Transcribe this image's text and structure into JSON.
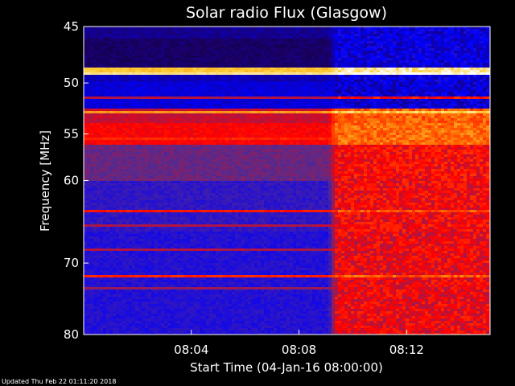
{
  "chart_data": {
    "type": "heatmap",
    "title": "Solar radio Flux (Glasgow)",
    "xlabel": "Start Time (04-Jan-16 08:00:00)",
    "ylabel": "Frequency [MHz]",
    "x_unit": "minutes after 08:00:00",
    "xlim": [
      0,
      15.1
    ],
    "ylim": [
      45,
      80
    ],
    "y_scale": "log",
    "y_direction": "increasing-downward",
    "x_ticks": [
      {
        "value": 4,
        "label": "08:04"
      },
      {
        "value": 8,
        "label": "08:08"
      },
      {
        "value": 12,
        "label": "08:12"
      }
    ],
    "y_ticks": [
      {
        "value": 45,
        "label": "45"
      },
      {
        "value": 50,
        "label": "50"
      },
      {
        "value": 55,
        "label": "55"
      },
      {
        "value": 60,
        "label": "60"
      },
      {
        "value": 70,
        "label": "70"
      },
      {
        "value": 80,
        "label": "80"
      }
    ],
    "transition_time_min": 9.3,
    "colormap": [
      "#000000",
      "#1a0066",
      "#0000ff",
      "#5a2a8a",
      "#ff0000",
      "#ff6600",
      "#ffcc33",
      "#ffffff"
    ],
    "background_levels": [
      {
        "from": 45,
        "to": 46,
        "before": 0.18,
        "after": 0.26
      },
      {
        "from": 46,
        "to": 48.5,
        "before": 0.14,
        "after": 0.26
      },
      {
        "from": 48.5,
        "to": 50,
        "before": 0.22,
        "after": 0.26
      },
      {
        "from": 50,
        "to": 52.5,
        "before": 0.25,
        "after": 0.25
      },
      {
        "from": 52.5,
        "to": 54,
        "before": 0.52,
        "after": 0.7
      },
      {
        "from": 54,
        "to": 56,
        "before": 0.57,
        "after": 0.72
      },
      {
        "from": 56,
        "to": 60,
        "before": 0.44,
        "after": 0.58
      },
      {
        "from": 60,
        "to": 66,
        "before": 0.36,
        "after": 0.57
      },
      {
        "from": 66,
        "to": 80,
        "before": 0.34,
        "after": 0.56
      }
    ],
    "interference_lines": [
      {
        "freq": 48.8,
        "level": 0.85
      },
      {
        "freq": 49.1,
        "level": 0.92
      },
      {
        "freq": 51.5,
        "level": 0.5
      },
      {
        "freq": 52.8,
        "level": 0.78
      },
      {
        "freq": 55.6,
        "level": 0.62
      },
      {
        "freq": 63.6,
        "level": 0.6
      },
      {
        "freq": 65.3,
        "level": 0.5
      },
      {
        "freq": 68.4,
        "level": 0.5
      },
      {
        "freq": 71.8,
        "level": 0.62
      },
      {
        "freq": 73.5,
        "level": 0.48
      }
    ]
  },
  "footer": {
    "updated": "Updated Thu Feb 22 01:11:20 2018"
  }
}
